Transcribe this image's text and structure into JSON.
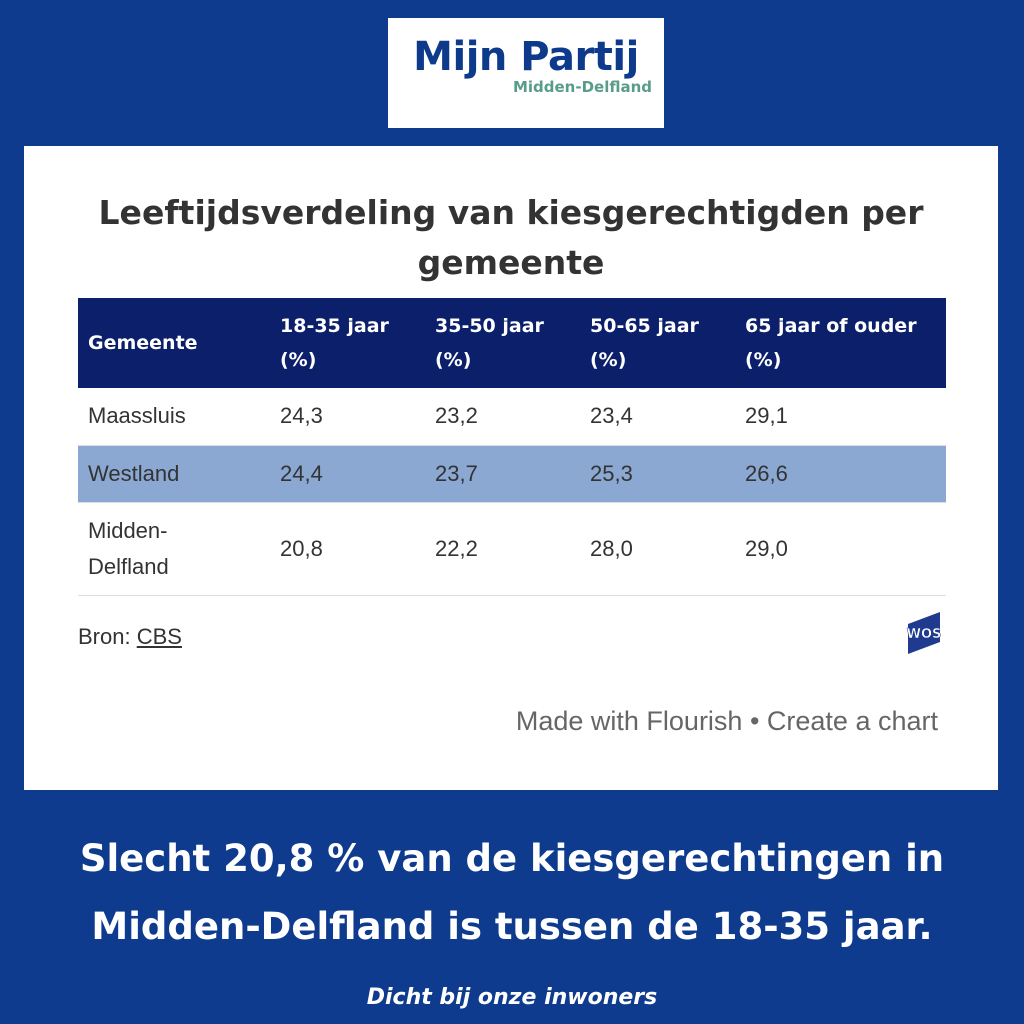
{
  "logo": {
    "title": "Mijn Partij",
    "subtitle": "Midden-Delfland"
  },
  "chart_title": "Leeftijdsverdeling van kiesgerechtigden per gemeente",
  "chart_data": {
    "type": "table",
    "columns": [
      "Gemeente",
      "18-35 jaar (%)",
      "35-50 jaar (%)",
      "50-65 jaar (%)",
      "65 jaar of ouder (%)"
    ],
    "rows": [
      [
        "Maassluis",
        "24,3",
        "23,2",
        "23,4",
        "29,1"
      ],
      [
        "Westland",
        "24,4",
        "23,7",
        "25,3",
        "26,6"
      ],
      [
        "Midden-Delfland",
        "20,8",
        "22,2",
        "28,0",
        "29,0"
      ]
    ]
  },
  "source": {
    "label": "Bron:",
    "link": "CBS"
  },
  "wos_logo": "WOS",
  "flourish": "Made with Flourish • Create a chart",
  "headline": "Slecht 20,8 % van de kiesgerechtingen in Midden-Delfland is tussen de 18-35 jaar.",
  "tagline": "Dicht bij onze inwoners",
  "colors": {
    "background": "#0e3b8e",
    "header": "#0b1f6b",
    "highlight_row": "#8aa8d2"
  }
}
